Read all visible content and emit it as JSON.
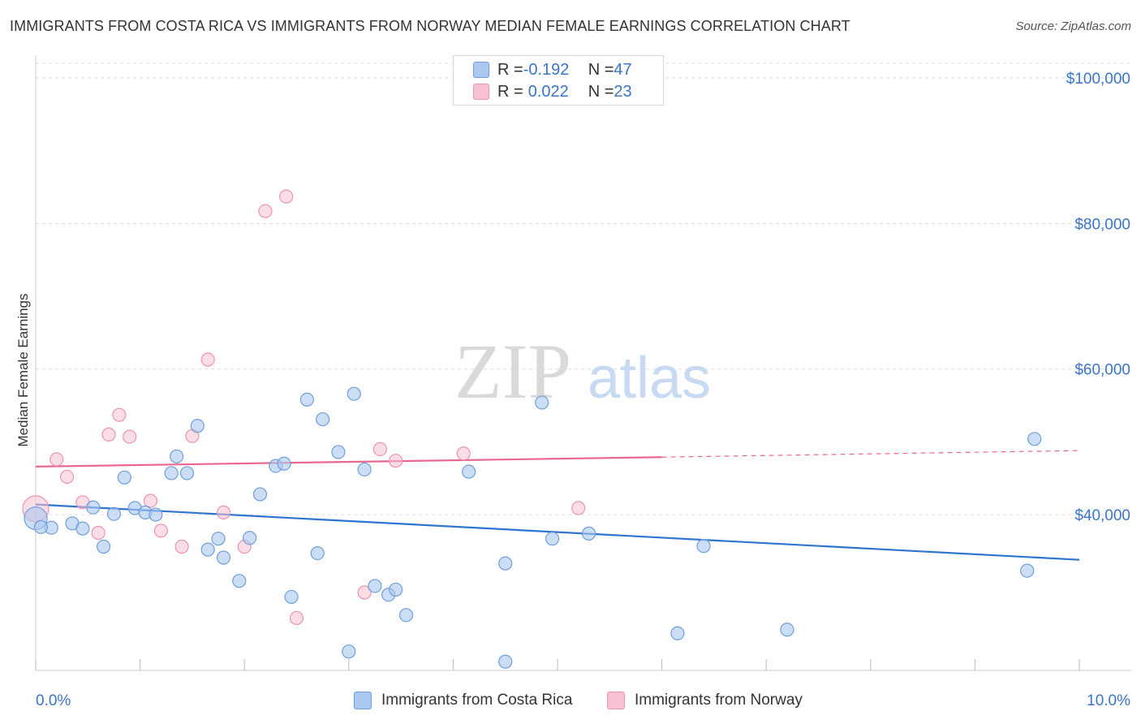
{
  "title": "IMMIGRANTS FROM COSTA RICA VS IMMIGRANTS FROM NORWAY MEDIAN FEMALE EARNINGS CORRELATION CHART",
  "source": "Source: ZipAtlas.com",
  "watermark": {
    "zip": "ZIP",
    "atlas": "atlas"
  },
  "legend": {
    "rows": [
      {
        "r_label": "R = ",
        "r_value": "-0.192",
        "n_label": "N = ",
        "n_value": "47"
      },
      {
        "r_label": "R = ",
        "r_value": "0.022",
        "n_label": "N = ",
        "n_value": "23"
      }
    ]
  },
  "colors": {
    "costa_rica_fill": "#aac8f0",
    "costa_rica_stroke": "#6f9fdb",
    "costa_rica_line": "#2f74d0",
    "norway_fill": "#f7c1d2",
    "norway_stroke": "#ee93b0",
    "norway_line": "#e8688f",
    "axis_text": "#3a74c8",
    "grid": "#dddddd"
  },
  "chart_data": {
    "type": "scatter",
    "title": "IMMIGRANTS FROM COSTA RICA VS IMMIGRANTS FROM NORWAY MEDIAN FEMALE EARNINGS CORRELATION CHART",
    "xlabel": "",
    "ylabel": "Median Female Earnings",
    "xlim": [
      0,
      10
    ],
    "ylim": [
      18600,
      102000
    ],
    "x_tick_labels": [
      "0.0%",
      "10.0%"
    ],
    "y_ticks": [
      40000,
      60000,
      80000,
      100000
    ],
    "y_tick_labels": [
      "$40,000",
      "$60,000",
      "$80,000",
      "$100,000"
    ],
    "grid": true,
    "legend_position": "bottom",
    "series": [
      {
        "name": "Immigrants from Costa Rica",
        "r": -0.192,
        "n": 47,
        "trend": {
          "x": [
            0,
            10
          ],
          "y": [
            41400,
            33800
          ]
        },
        "points": [
          [
            0.0,
            39500
          ],
          [
            0.15,
            38200
          ],
          [
            0.35,
            38800
          ],
          [
            0.45,
            38100
          ],
          [
            0.55,
            41000
          ],
          [
            0.65,
            35600
          ],
          [
            0.75,
            40100
          ],
          [
            0.85,
            45100
          ],
          [
            0.95,
            40900
          ],
          [
            1.05,
            40300
          ],
          [
            1.15,
            40000
          ],
          [
            1.3,
            45700
          ],
          [
            1.35,
            48000
          ],
          [
            1.45,
            45700
          ],
          [
            1.55,
            52200
          ],
          [
            1.65,
            35200
          ],
          [
            1.75,
            36700
          ],
          [
            1.8,
            34100
          ],
          [
            1.95,
            30900
          ],
          [
            2.05,
            36800
          ],
          [
            2.15,
            42800
          ],
          [
            2.3,
            46700
          ],
          [
            2.38,
            47000
          ],
          [
            2.45,
            28700
          ],
          [
            2.6,
            55800
          ],
          [
            2.7,
            34700
          ],
          [
            2.75,
            53100
          ],
          [
            2.9,
            48600
          ],
          [
            3.0,
            21200
          ],
          [
            3.05,
            56600
          ],
          [
            3.15,
            46200
          ],
          [
            3.25,
            30200
          ],
          [
            3.38,
            29000
          ],
          [
            3.45,
            29700
          ],
          [
            3.55,
            26200
          ],
          [
            4.15,
            45900
          ],
          [
            4.5,
            33300
          ],
          [
            4.5,
            19800
          ],
          [
            4.85,
            55400
          ],
          [
            4.95,
            36700
          ],
          [
            5.3,
            37400
          ],
          [
            6.15,
            23700
          ],
          [
            6.4,
            35700
          ],
          [
            7.2,
            24200
          ],
          [
            9.5,
            32300
          ],
          [
            9.57,
            50400
          ],
          [
            0.05,
            38300
          ]
        ]
      },
      {
        "name": "Immigrants from Norway",
        "r": 0.022,
        "n": 23,
        "trend": {
          "x": [
            0,
            6
          ],
          "y": [
            46600,
            47900
          ]
        },
        "trend_extension": {
          "x": [
            6,
            10
          ],
          "y": [
            47900,
            48800
          ]
        },
        "points": [
          [
            0.0,
            40800
          ],
          [
            0.2,
            47600
          ],
          [
            0.3,
            45200
          ],
          [
            0.45,
            41700
          ],
          [
            0.6,
            37500
          ],
          [
            0.7,
            51000
          ],
          [
            0.8,
            53700
          ],
          [
            0.9,
            50700
          ],
          [
            1.1,
            41900
          ],
          [
            1.2,
            37800
          ],
          [
            1.4,
            35600
          ],
          [
            1.5,
            50800
          ],
          [
            1.65,
            61300
          ],
          [
            1.8,
            40300
          ],
          [
            2.0,
            35600
          ],
          [
            2.2,
            81700
          ],
          [
            2.4,
            83700
          ],
          [
            2.5,
            25800
          ],
          [
            3.15,
            29300
          ],
          [
            3.3,
            49000
          ],
          [
            3.45,
            47400
          ],
          [
            4.1,
            48400
          ],
          [
            5.2,
            40900
          ]
        ]
      }
    ]
  },
  "bottom_legend": {
    "items": [
      {
        "label": "Immigrants from Costa Rica"
      },
      {
        "label": "Immigrants from Norway"
      }
    ]
  }
}
